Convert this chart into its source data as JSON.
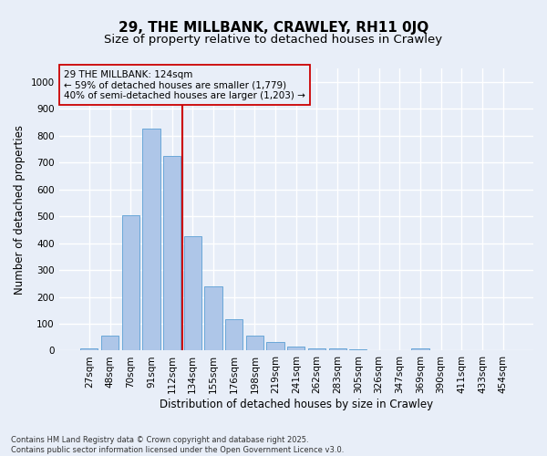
{
  "title": "29, THE MILLBANK, CRAWLEY, RH11 0JQ",
  "subtitle": "Size of property relative to detached houses in Crawley",
  "xlabel": "Distribution of detached houses by size in Crawley",
  "ylabel": "Number of detached properties",
  "categories": [
    "27sqm",
    "48sqm",
    "70sqm",
    "91sqm",
    "112sqm",
    "134sqm",
    "155sqm",
    "176sqm",
    "198sqm",
    "219sqm",
    "241sqm",
    "262sqm",
    "283sqm",
    "305sqm",
    "326sqm",
    "347sqm",
    "369sqm",
    "390sqm",
    "411sqm",
    "433sqm",
    "454sqm"
  ],
  "values": [
    10,
    57,
    505,
    825,
    725,
    425,
    238,
    118,
    57,
    32,
    15,
    10,
    10,
    5,
    3,
    0,
    8,
    0,
    0,
    0,
    0
  ],
  "bar_color": "#aec6e8",
  "bar_edgecolor": "#5a9fd4",
  "vline_x": 4.5,
  "vline_color": "#cc0000",
  "annotation_text": "29 THE MILLBANK: 124sqm\n← 59% of detached houses are smaller (1,779)\n40% of semi-detached houses are larger (1,203) →",
  "annotation_box_color": "#cc0000",
  "ylim": [
    0,
    1050
  ],
  "yticks": [
    0,
    100,
    200,
    300,
    400,
    500,
    600,
    700,
    800,
    900,
    1000
  ],
  "bg_color": "#e8eef8",
  "grid_color": "#ffffff",
  "footnote": "Contains HM Land Registry data © Crown copyright and database right 2025.\nContains public sector information licensed under the Open Government Licence v3.0.",
  "title_fontsize": 11,
  "subtitle_fontsize": 9.5,
  "axis_label_fontsize": 8.5,
  "tick_fontsize": 7.5,
  "annotation_fontsize": 7.5,
  "footnote_fontsize": 6.0
}
